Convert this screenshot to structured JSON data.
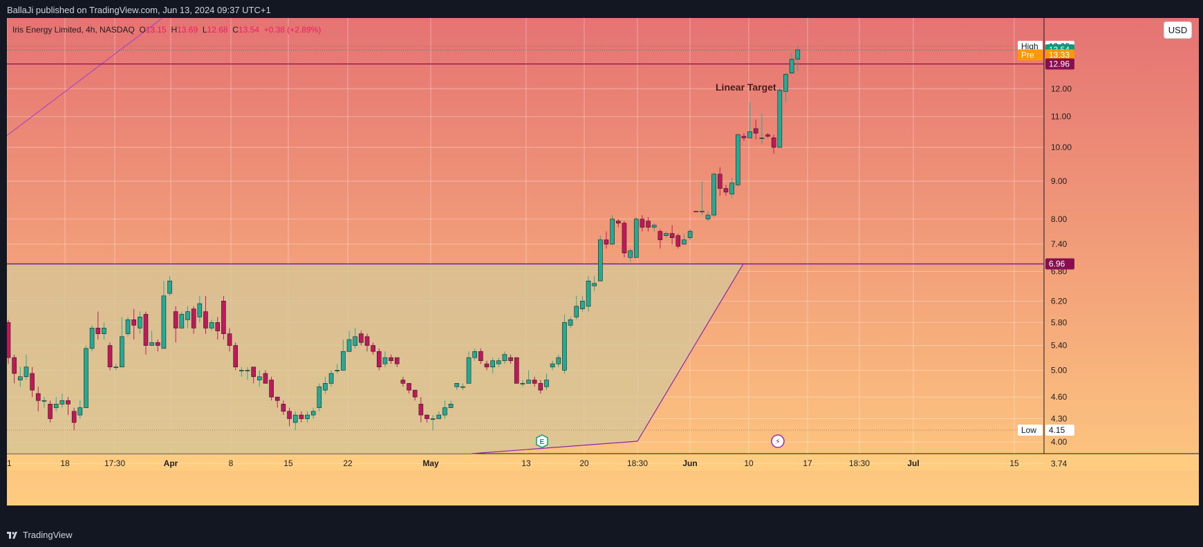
{
  "header": {
    "publisher_line": "BallaJi published on TradingView.com, Jun 13, 2024 09:37 UTC+1"
  },
  "legend": {
    "symbol": "Iris Energy Limited, 4h, NASDAQ",
    "o_label": "O",
    "o_value": "13.15",
    "h_label": "H",
    "h_value": "13.69",
    "l_label": "L",
    "l_value": "12.68",
    "c_label": "C",
    "c_value": "13.54",
    "change": "+0.38 (+2.89%)"
  },
  "currency_button": "USD",
  "footer": {
    "brand": "TradingView"
  },
  "colors": {
    "up": "#22ab94",
    "down": "#c2185b",
    "bg_top": "#e57373",
    "bg_bottom": "#ffcc80",
    "zone_fill": "#d7c896",
    "zone_line": "#7b1fa2",
    "target_line": "#880e4f",
    "label_last": "#089981",
    "label_pre": "#ff9800",
    "label_target": "#880e4f"
  },
  "chart_data": {
    "type": "candlestick",
    "title": "Iris Energy Limited, 4h, NASDAQ",
    "scale": "log",
    "y_ticks": [
      3.74,
      4.0,
      4.3,
      4.6,
      5.0,
      5.4,
      5.8,
      6.2,
      6.8,
      7.4,
      8.0,
      9.0,
      10.0,
      11.0,
      12.0
    ],
    "x_ticks": [
      "1",
      "18",
      "17:30",
      "Apr",
      "8",
      "15",
      "22",
      "May",
      "13",
      "20",
      "18:30",
      "Jun",
      "10",
      "17",
      "18:30",
      "Jul",
      "15"
    ],
    "x_ticks_bold": [
      "Apr",
      "May",
      "Jun",
      "Jul"
    ],
    "candles": [
      [
        5.8,
        5.2,
        5.85,
        5.1
      ],
      [
        5.2,
        4.95,
        5.25,
        4.8
      ],
      [
        4.85,
        4.9,
        5.05,
        4.75
      ],
      [
        4.9,
        5.05,
        5.25,
        4.85
      ],
      [
        4.95,
        4.7,
        5.05,
        4.6
      ],
      [
        4.65,
        4.55,
        4.75,
        4.4
      ],
      [
        4.55,
        4.55,
        4.6,
        4.45
      ],
      [
        4.5,
        4.3,
        4.55,
        4.25
      ],
      [
        4.45,
        4.5,
        4.6,
        4.4
      ],
      [
        4.5,
        4.55,
        4.65,
        4.45
      ],
      [
        4.55,
        4.5,
        4.6,
        4.35
      ],
      [
        4.4,
        4.25,
        4.45,
        4.15
      ],
      [
        4.35,
        4.45,
        4.55,
        4.3
      ],
      [
        4.45,
        5.35,
        5.4,
        4.45
      ],
      [
        5.35,
        5.7,
        5.75,
        5.3
      ],
      [
        5.7,
        5.6,
        6.0,
        5.5
      ],
      [
        5.6,
        5.7,
        5.8,
        5.5
      ],
      [
        5.4,
        5.05,
        5.45,
        5.0
      ],
      [
        5.05,
        5.05,
        5.1,
        5.0
      ],
      [
        5.05,
        5.55,
        5.9,
        5.05
      ],
      [
        5.6,
        5.85,
        5.9,
        5.55
      ],
      [
        5.85,
        5.75,
        6.05,
        5.5
      ],
      [
        5.7,
        5.9,
        6.0,
        5.6
      ],
      [
        5.95,
        5.4,
        6.0,
        5.25
      ],
      [
        5.4,
        5.45,
        5.65,
        5.4
      ],
      [
        5.45,
        5.4,
        5.5,
        5.3
      ],
      [
        5.35,
        6.3,
        6.6,
        5.35
      ],
      [
        6.35,
        6.6,
        6.7,
        6.3
      ],
      [
        6.0,
        5.7,
        6.1,
        5.45
      ],
      [
        5.7,
        5.95,
        6.0,
        5.7
      ],
      [
        5.85,
        6.0,
        6.1,
        5.7
      ],
      [
        6.05,
        5.7,
        6.1,
        5.6
      ],
      [
        5.9,
        6.15,
        6.3,
        5.8
      ],
      [
        6.0,
        5.7,
        6.3,
        5.6
      ],
      [
        5.7,
        5.8,
        5.85,
        5.65
      ],
      [
        5.8,
        5.65,
        5.9,
        5.5
      ],
      [
        6.2,
        5.6,
        6.3,
        5.5
      ],
      [
        5.6,
        5.4,
        5.7,
        5.3
      ],
      [
        5.4,
        5.05,
        5.45,
        5.0
      ],
      [
        5.0,
        5.0,
        5.05,
        4.9
      ],
      [
        5.0,
        5.0,
        5.05,
        4.85
      ],
      [
        5.05,
        4.9,
        5.05,
        4.8
      ],
      [
        4.85,
        4.9,
        5.0,
        4.75
      ],
      [
        4.95,
        4.8,
        5.0,
        4.8
      ],
      [
        4.85,
        4.6,
        4.9,
        4.55
      ],
      [
        4.6,
        4.55,
        4.6,
        4.45
      ],
      [
        4.5,
        4.4,
        4.55,
        4.35
      ],
      [
        4.4,
        4.3,
        4.45,
        4.2
      ],
      [
        4.25,
        4.35,
        4.4,
        4.15
      ],
      [
        4.35,
        4.3,
        4.4,
        4.25
      ],
      [
        4.3,
        4.35,
        4.4,
        4.25
      ],
      [
        4.35,
        4.4,
        4.45,
        4.3
      ],
      [
        4.45,
        4.75,
        4.8,
        4.4
      ],
      [
        4.7,
        4.8,
        4.9,
        4.65
      ],
      [
        4.8,
        4.95,
        5.0,
        4.75
      ],
      [
        5.0,
        5.0,
        5.1,
        4.95
      ],
      [
        5.0,
        5.3,
        5.5,
        5.0
      ],
      [
        5.3,
        5.5,
        5.65,
        5.3
      ],
      [
        5.4,
        5.55,
        5.7,
        5.35
      ],
      [
        5.6,
        5.45,
        5.65,
        5.4
      ],
      [
        5.55,
        5.4,
        5.6,
        5.3
      ],
      [
        5.4,
        5.3,
        5.45,
        5.25
      ],
      [
        5.3,
        5.05,
        5.35,
        5.0
      ],
      [
        5.1,
        5.2,
        5.3,
        5.05
      ],
      [
        5.2,
        5.15,
        5.25,
        5.1
      ],
      [
        5.2,
        5.1,
        5.15,
        5.05
      ],
      [
        4.85,
        4.8,
        4.9,
        4.75
      ],
      [
        4.8,
        4.7,
        4.8,
        4.65
      ],
      [
        4.7,
        4.6,
        4.7,
        4.55
      ],
      [
        4.5,
        4.35,
        4.6,
        4.25
      ],
      [
        4.35,
        4.3,
        4.35,
        4.25
      ],
      [
        4.3,
        4.3,
        4.35,
        4.15
      ],
      [
        4.3,
        4.35,
        4.4,
        4.3
      ],
      [
        4.35,
        4.45,
        4.55,
        4.3
      ],
      [
        4.45,
        4.5,
        4.55,
        4.45
      ],
      [
        4.75,
        4.8,
        4.8,
        4.7
      ],
      [
        4.75,
        4.75,
        4.8,
        4.7
      ],
      [
        4.8,
        5.2,
        5.3,
        4.8
      ],
      [
        5.2,
        5.3,
        5.35,
        5.15
      ],
      [
        5.3,
        5.15,
        5.35,
        5.1
      ],
      [
        5.1,
        5.05,
        5.15,
        5.0
      ],
      [
        5.05,
        5.15,
        5.2,
        4.95
      ],
      [
        5.1,
        5.15,
        5.2,
        5.05
      ],
      [
        5.15,
        5.25,
        5.3,
        5.1
      ],
      [
        5.2,
        5.15,
        5.25,
        5.1
      ],
      [
        5.2,
        4.8,
        5.2,
        4.8
      ],
      [
        4.8,
        4.8,
        4.85,
        4.75
      ],
      [
        4.8,
        4.85,
        5.0,
        4.8
      ],
      [
        4.85,
        4.8,
        4.9,
        4.75
      ],
      [
        4.8,
        4.7,
        4.85,
        4.65
      ],
      [
        4.75,
        4.85,
        4.95,
        4.7
      ],
      [
        5.05,
        5.1,
        5.15,
        5.0
      ],
      [
        5.1,
        5.2,
        5.25,
        5.05
      ],
      [
        5.0,
        5.8,
        5.95,
        4.95
      ],
      [
        5.75,
        5.85,
        5.9,
        5.7
      ],
      [
        5.9,
        6.1,
        6.3,
        5.85
      ],
      [
        6.05,
        6.2,
        6.3,
        6.0
      ],
      [
        6.1,
        6.6,
        6.7,
        6.0
      ],
      [
        6.5,
        6.55,
        6.7,
        6.4
      ],
      [
        6.6,
        7.5,
        7.6,
        6.6
      ],
      [
        7.5,
        7.4,
        7.7,
        7.3
      ],
      [
        7.4,
        8.0,
        8.1,
        7.4
      ],
      [
        7.95,
        7.9,
        8.0,
        7.8
      ],
      [
        7.9,
        7.2,
        7.95,
        7.1
      ],
      [
        7.1,
        7.25,
        7.3,
        7.0
      ],
      [
        7.1,
        8.0,
        8.05,
        7.1
      ],
      [
        8.0,
        7.8,
        8.1,
        7.7
      ],
      [
        7.95,
        7.8,
        8.05,
        7.7
      ],
      [
        7.8,
        7.85,
        7.9,
        7.7
      ],
      [
        7.7,
        7.5,
        7.75,
        7.3
      ],
      [
        7.6,
        7.65,
        7.7,
        7.55
      ],
      [
        7.65,
        7.55,
        7.85,
        7.4
      ],
      [
        7.6,
        7.35,
        7.65,
        7.3
      ],
      [
        7.4,
        7.5,
        7.65,
        7.4
      ],
      [
        7.55,
        7.7,
        7.75,
        7.5
      ],
      [
        8.2,
        8.2,
        8.2,
        8.2
      ],
      [
        8.2,
        8.2,
        9.0,
        8.1
      ],
      [
        8.0,
        8.1,
        8.2,
        7.95
      ],
      [
        8.1,
        9.2,
        9.25,
        8.05
      ],
      [
        9.2,
        8.8,
        9.4,
        8.6
      ],
      [
        8.8,
        8.7,
        8.9,
        8.6
      ],
      [
        8.65,
        8.95,
        9.1,
        8.55
      ],
      [
        8.9,
        10.4,
        10.45,
        8.85
      ],
      [
        10.35,
        10.3,
        10.45,
        10.2
      ],
      [
        10.3,
        10.5,
        11.5,
        10.3
      ],
      [
        10.6,
        10.45,
        10.9,
        10.25
      ],
      [
        10.3,
        10.3,
        11.1,
        10.1
      ],
      [
        10.4,
        10.35,
        10.45,
        10.3
      ],
      [
        10.3,
        10.0,
        10.4,
        9.8
      ],
      [
        10.0,
        11.95,
        12.05,
        10.0
      ],
      [
        11.9,
        12.55,
        12.6,
        11.5
      ],
      [
        12.6,
        13.15,
        13.4,
        12.55
      ],
      [
        13.15,
        13.54,
        13.69,
        12.68
      ]
    ],
    "last_price": 13.54,
    "session_high": 13.69,
    "session_low": 4.15,
    "pre_market": 13.33,
    "linear_target": 12.96,
    "zone_top": 6.96,
    "target_label": "Linear Target",
    "price_labels": {
      "high_tag": "High",
      "high": "13.69",
      "last": "13.54",
      "pre_tag": "Pre",
      "pre": "13.33",
      "target": "12.96",
      "zone": "6.96",
      "low_tag": "Low",
      "low": "4.15"
    },
    "markers": [
      {
        "type": "earnings",
        "symbol": "E"
      },
      {
        "type": "dividend",
        "symbol": "⚡"
      }
    ],
    "grid": true
  }
}
